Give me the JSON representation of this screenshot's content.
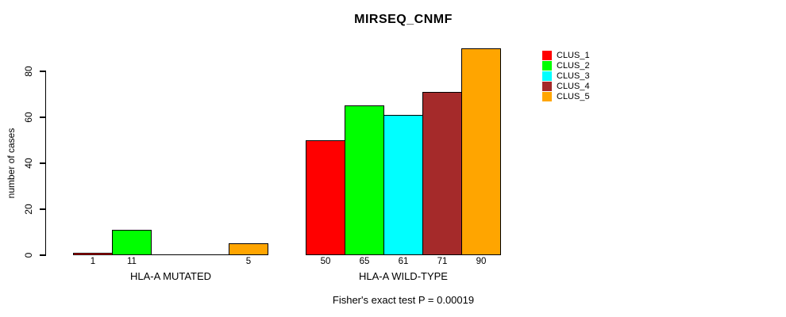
{
  "chart_data": {
    "type": "bar",
    "title": "MIRSEQ_CNMF",
    "xlabel": "",
    "ylabel": "number of cases",
    "ylim": [
      0,
      90
    ],
    "yticks": [
      0,
      20,
      40,
      60,
      80
    ],
    "grid": false,
    "legend_position": "right-outside",
    "bar_value_labels_shown": true,
    "categories": [
      "HLA-A MUTATED",
      "HLA-A WILD-TYPE"
    ],
    "series": [
      {
        "name": "CLUS_1",
        "color": "#FF0000",
        "values": [
          1,
          50
        ]
      },
      {
        "name": "CLUS_2",
        "color": "#00FF00",
        "values": [
          11,
          65
        ]
      },
      {
        "name": "CLUS_3",
        "color": "#00FFFF",
        "values": [
          0,
          61
        ]
      },
      {
        "name": "CLUS_4",
        "color": "#A52A2A",
        "values": [
          0,
          71
        ]
      },
      {
        "name": "CLUS_5",
        "color": "#FFA500",
        "values": [
          5,
          90
        ]
      }
    ],
    "annotation": "Fisher's exact test P = 0.00019"
  }
}
